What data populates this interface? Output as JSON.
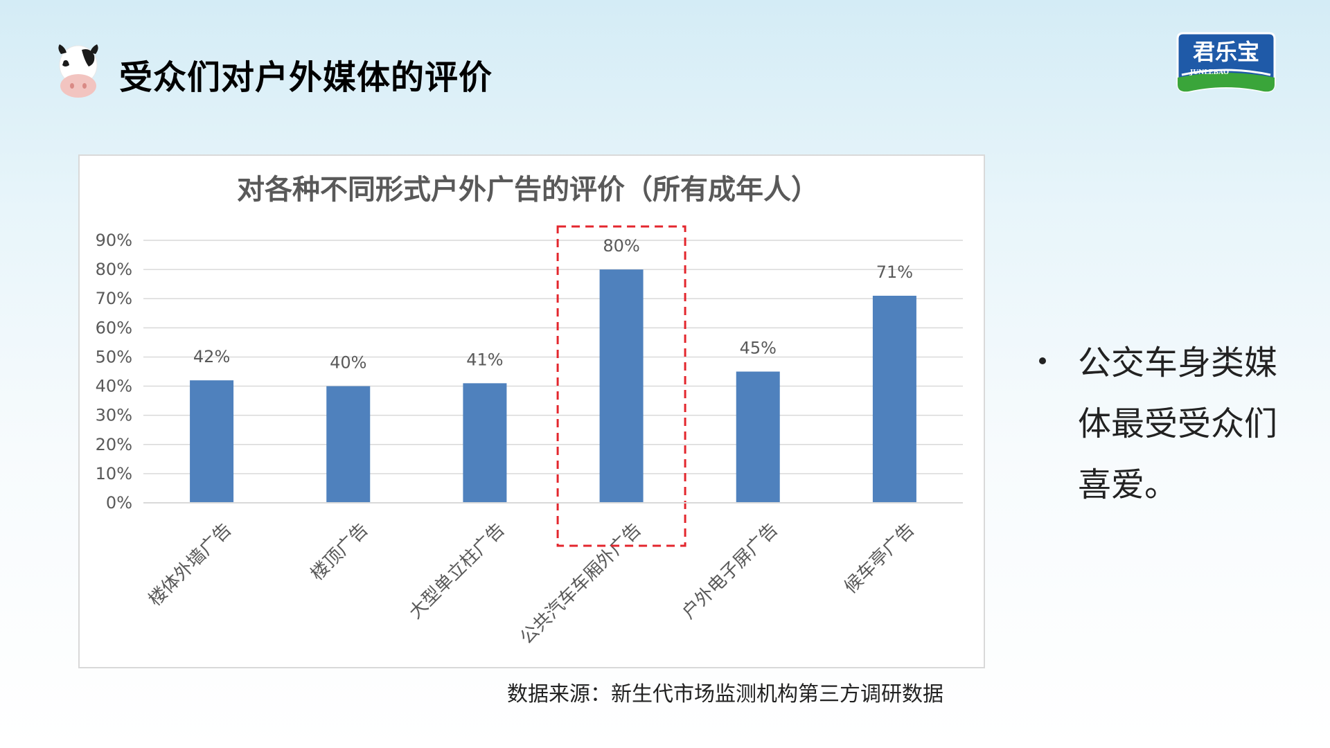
{
  "header": {
    "title": "受众们对户外媒体的评价",
    "brand_text": "君乐宝",
    "brand_subtext": "JUNLEBAO"
  },
  "chart_data": {
    "type": "bar",
    "title": "对各种不同形式户外广告的评价（所有成年人）",
    "categories": [
      "楼体外墙广告",
      "楼顶广告",
      "大型单立柱广告",
      "公共汽车车厢外广告",
      "户外电子屏广告",
      "候车亭广告"
    ],
    "values": [
      42,
      40,
      41,
      80,
      45,
      71
    ],
    "data_labels": [
      "42%",
      "40%",
      "41%",
      "80%",
      "45%",
      "71%"
    ],
    "y_ticks": [
      "0%",
      "10%",
      "20%",
      "30%",
      "40%",
      "50%",
      "60%",
      "70%",
      "80%",
      "90%"
    ],
    "ylim": [
      0,
      90
    ],
    "grid": true,
    "highlight_category": "公共汽车车厢外广告",
    "colors": {
      "bar": "#4f81bd",
      "highlight_border": "#e3262d",
      "grid": "#d9d9d9",
      "text": "#595959"
    }
  },
  "bullet": {
    "text": "公交车身类媒体最受受众们喜爱。"
  },
  "source_note": "数据来源：新生代市场监测机构第三方调研数据"
}
